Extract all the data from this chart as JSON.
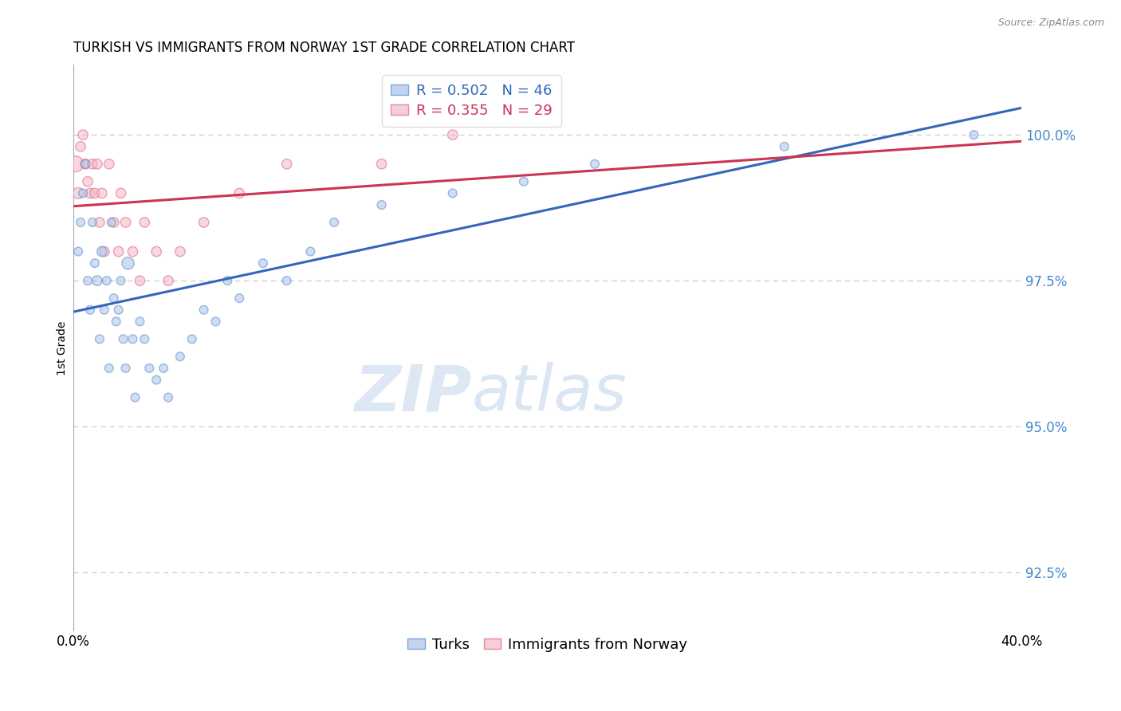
{
  "title": "TURKISH VS IMMIGRANTS FROM NORWAY 1ST GRADE CORRELATION CHART",
  "source": "Source: ZipAtlas.com",
  "ylabel": "1st Grade",
  "xlim": [
    0.0,
    40.0
  ],
  "ylim": [
    91.5,
    101.2
  ],
  "yticks": [
    100.0,
    97.5,
    95.0,
    92.5
  ],
  "ytick_labels": [
    "100.0%",
    "97.5%",
    "95.0%",
    "92.5%"
  ],
  "blue_R": 0.502,
  "blue_N": 46,
  "pink_R": 0.355,
  "pink_N": 29,
  "blue_color": "#aac4e8",
  "pink_color": "#f4b8c8",
  "blue_edge_color": "#5588cc",
  "pink_edge_color": "#e06080",
  "blue_line_color": "#3366bb",
  "pink_line_color": "#cc3355",
  "turks_label": "Turks",
  "norway_label": "Immigrants from Norway",
  "blue_x": [
    0.2,
    0.3,
    0.4,
    0.5,
    0.6,
    0.7,
    0.8,
    0.9,
    1.0,
    1.1,
    1.2,
    1.3,
    1.4,
    1.5,
    1.6,
    1.7,
    1.8,
    1.9,
    2.0,
    2.1,
    2.2,
    2.3,
    2.5,
    2.6,
    2.8,
    3.0,
    3.2,
    3.5,
    3.8,
    4.0,
    4.5,
    5.0,
    5.5,
    6.0,
    6.5,
    7.0,
    8.0,
    9.0,
    10.0,
    11.0,
    13.0,
    16.0,
    19.0,
    22.0,
    30.0,
    38.0
  ],
  "blue_y": [
    98.0,
    98.5,
    99.0,
    99.5,
    97.5,
    97.0,
    98.5,
    97.8,
    97.5,
    96.5,
    98.0,
    97.0,
    97.5,
    96.0,
    98.5,
    97.2,
    96.8,
    97.0,
    97.5,
    96.5,
    96.0,
    97.8,
    96.5,
    95.5,
    96.8,
    96.5,
    96.0,
    95.8,
    96.0,
    95.5,
    96.2,
    96.5,
    97.0,
    96.8,
    97.5,
    97.2,
    97.8,
    97.5,
    98.0,
    98.5,
    98.8,
    99.0,
    99.2,
    99.5,
    99.8,
    100.0
  ],
  "blue_sizes": [
    60,
    60,
    60,
    60,
    60,
    60,
    60,
    60,
    80,
    60,
    80,
    60,
    60,
    60,
    60,
    60,
    60,
    60,
    60,
    60,
    60,
    120,
    60,
    60,
    60,
    60,
    60,
    60,
    60,
    60,
    60,
    60,
    60,
    60,
    60,
    60,
    60,
    60,
    60,
    60,
    60,
    60,
    60,
    60,
    60,
    60
  ],
  "pink_x": [
    0.1,
    0.2,
    0.3,
    0.4,
    0.5,
    0.6,
    0.7,
    0.8,
    0.9,
    1.0,
    1.1,
    1.2,
    1.3,
    1.5,
    1.7,
    1.9,
    2.0,
    2.2,
    2.5,
    2.8,
    3.0,
    3.5,
    4.0,
    4.5,
    5.5,
    7.0,
    9.0,
    13.0,
    16.0
  ],
  "pink_y": [
    99.5,
    99.0,
    99.8,
    100.0,
    99.5,
    99.2,
    99.0,
    99.5,
    99.0,
    99.5,
    98.5,
    99.0,
    98.0,
    99.5,
    98.5,
    98.0,
    99.0,
    98.5,
    98.0,
    97.5,
    98.5,
    98.0,
    97.5,
    98.0,
    98.5,
    99.0,
    99.5,
    99.5,
    100.0
  ],
  "pink_sizes": [
    200,
    100,
    80,
    80,
    80,
    80,
    80,
    80,
    80,
    80,
    80,
    80,
    80,
    80,
    80,
    80,
    80,
    80,
    80,
    80,
    80,
    80,
    80,
    80,
    80,
    80,
    80,
    80,
    80
  ],
  "watermark_zip": "ZIP",
  "watermark_atlas": "atlas",
  "dashed_line_color": "#cccccc",
  "legend_text_color_blue": "#3366bb",
  "legend_text_color_pink": "#cc3355"
}
